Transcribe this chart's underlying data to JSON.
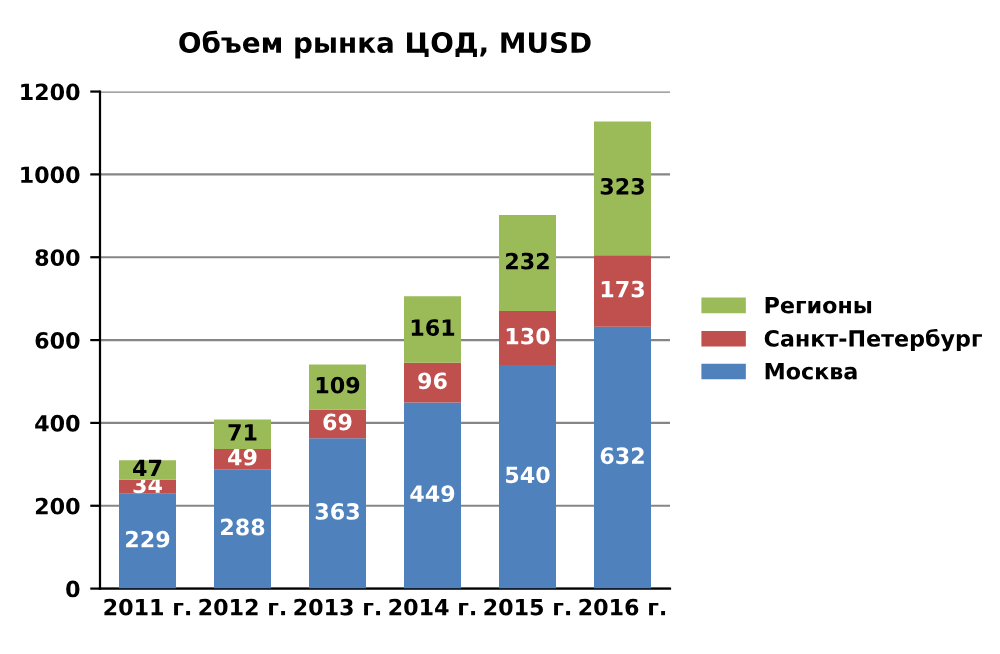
{
  "chart_data": {
    "type": "bar",
    "title": "Объем рынка ЦОД, MUSD",
    "stacked": true,
    "categories": [
      "2011 г.",
      "2012 г.",
      "2013 г.",
      "2014 г.",
      "2015 г.",
      "2016 г."
    ],
    "series": [
      {
        "name": "Москва",
        "color": "#4f81bd",
        "values": [
          229,
          288,
          363,
          449,
          540,
          632
        ]
      },
      {
        "name": "Санкт-Петербург",
        "color": "#c0504d",
        "values": [
          34,
          49,
          69,
          96,
          130,
          173
        ]
      },
      {
        "name": "Регионы",
        "color": "#9bbb59",
        "values": [
          47,
          71,
          109,
          161,
          232,
          323
        ]
      }
    ],
    "ylim": [
      0,
      1200
    ],
    "yticks": [
      0,
      200,
      400,
      600,
      800,
      1000,
      1200
    ],
    "grid": "y",
    "legend": "right",
    "data_labels": true
  }
}
